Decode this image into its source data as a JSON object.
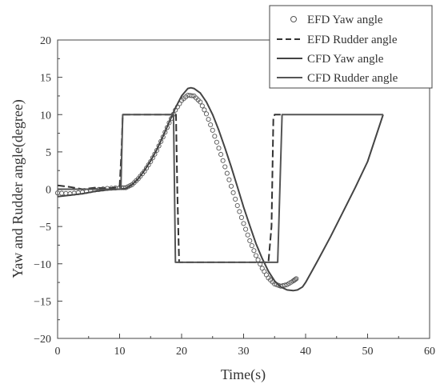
{
  "chart_data": {
    "type": "line",
    "xlabel": "Time(s)",
    "ylabel": "Yaw and Rudder angle(degree)",
    "xlim": [
      0,
      60
    ],
    "ylim": [
      -20,
      20
    ],
    "x_ticks": [
      0,
      10,
      20,
      30,
      40,
      50,
      60
    ],
    "y_ticks": [
      -20,
      -15,
      -10,
      -5,
      0,
      5,
      10,
      15,
      20
    ],
    "grid": false,
    "legend_position": "top-right",
    "series": [
      {
        "name": "EFD Yaw angle",
        "style": "circle-markers",
        "color": "#555555",
        "x": [
          0,
          2,
          4,
          6,
          8,
          10,
          11,
          12,
          13,
          14,
          15,
          16,
          17,
          18,
          19,
          20,
          21,
          22,
          23,
          24,
          25,
          26,
          27,
          28,
          29,
          30,
          31,
          32,
          33,
          34,
          35,
          36,
          37,
          38,
          38.5
        ],
        "y": [
          -0.5,
          -0.6,
          -0.4,
          -0.1,
          0.1,
          0.2,
          0.2,
          0.6,
          1.4,
          2.4,
          3.7,
          5.2,
          7.0,
          8.9,
          10.6,
          11.9,
          12.6,
          12.5,
          11.7,
          10.1,
          7.9,
          5.5,
          3.0,
          0.4,
          -2.2,
          -4.6,
          -6.9,
          -8.9,
          -10.6,
          -11.9,
          -12.7,
          -13.0,
          -12.8,
          -12.3,
          -12.0
        ]
      },
      {
        "name": "EFD Rudder angle",
        "style": "dashed",
        "color": "#333333",
        "x": [
          0,
          2,
          4,
          6,
          8,
          10,
          10.3,
          10.5,
          12,
          14,
          16,
          18,
          19.1,
          19.3,
          19.6,
          22,
          26,
          30,
          34,
          34.5,
          34.8,
          35,
          36.2
        ],
        "y": [
          0.5,
          0.3,
          0.0,
          0.2,
          0.1,
          0.3,
          5.0,
          10.0,
          10.0,
          10.0,
          10.0,
          10.0,
          10.0,
          0.0,
          -9.8,
          -9.8,
          -9.8,
          -9.8,
          -9.8,
          -5.0,
          9.5,
          10.0,
          10.0
        ]
      },
      {
        "name": "CFD Yaw angle",
        "style": "solid",
        "color": "#444444",
        "x": [
          0,
          2,
          4,
          6,
          8,
          10,
          11,
          12,
          13,
          14,
          15,
          16,
          17,
          18,
          19,
          20,
          21,
          21.5,
          22,
          23,
          24,
          25,
          26,
          27,
          28,
          29,
          30,
          31,
          32,
          33,
          34,
          35,
          36,
          37,
          38,
          38.7,
          39.5,
          40,
          41,
          42,
          44,
          46,
          48,
          50,
          52.5
        ],
        "y": [
          -1.0,
          -0.8,
          -0.6,
          -0.3,
          -0.1,
          0.0,
          0.1,
          0.6,
          1.4,
          2.5,
          3.8,
          5.3,
          7.1,
          9.0,
          10.9,
          12.5,
          13.5,
          13.6,
          13.5,
          12.9,
          11.7,
          10.0,
          7.9,
          5.5,
          3.0,
          0.3,
          -2.4,
          -4.9,
          -7.3,
          -9.3,
          -11.0,
          -12.3,
          -13.1,
          -13.5,
          -13.6,
          -13.5,
          -13.1,
          -12.5,
          -11.0,
          -9.5,
          -6.4,
          -3.1,
          0.2,
          3.7,
          10.0
        ]
      },
      {
        "name": "CFD Rudder angle",
        "style": "solid",
        "color": "#555555",
        "x": [
          0,
          3,
          6,
          9,
          10.2,
          10.5,
          14,
          18,
          18.7,
          19,
          22,
          26,
          30,
          34,
          35.5,
          36.2,
          40,
          44,
          48,
          52.5
        ],
        "y": [
          0.0,
          0.0,
          0.0,
          0.0,
          0.0,
          10.0,
          10.0,
          10.0,
          10.0,
          -9.8,
          -9.8,
          -9.8,
          -9.8,
          -9.8,
          -9.8,
          10.0,
          10.0,
          10.0,
          10.0,
          10.0
        ]
      }
    ]
  }
}
